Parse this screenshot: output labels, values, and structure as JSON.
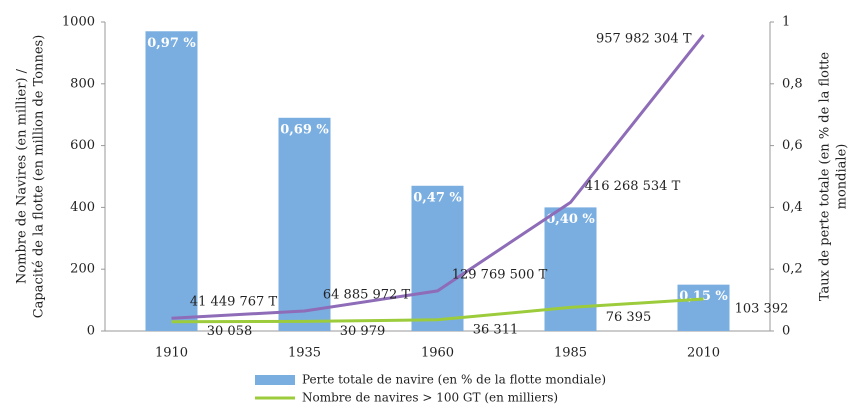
{
  "chart_data": {
    "type": "bar",
    "categories": [
      "1910",
      "1935",
      "1960",
      "1985",
      "2010"
    ],
    "series": [
      {
        "name": "Perte totale de navire (en % de la flotte mondiale)",
        "type": "bar",
        "axis": "y2",
        "color": "#7aaee0",
        "values": [
          0.97,
          0.69,
          0.47,
          0.4,
          0.15
        ],
        "value_labels": [
          "0,97 %",
          "0,69 %",
          "0,47 %",
          "0,40 %",
          "0,15 %"
        ]
      },
      {
        "type": "line",
        "color": "#8e6cb8",
        "values": [
          41.449767,
          64.885972,
          129.7695,
          416.268534,
          957.982304
        ],
        "value_labels": [
          "41 449 767 T",
          "64 885 972 T",
          "129 769 500 T",
          "416 268 534 T",
          "957 982 304 T"
        ]
      },
      {
        "name": "Nombre de navires > 100 GT (en milliers)",
        "type": "line",
        "color": "#9ccc3c",
        "values": [
          30.058,
          30.979,
          36.311,
          76.395,
          103.392
        ],
        "value_labels": [
          "30 058",
          "30 979",
          "36 311",
          "76 395",
          "103 392"
        ]
      }
    ],
    "y_label": [
      "Nombre de Navires (en millier) /",
      "Capacité de la flotte (en million de Tonnes)"
    ],
    "y2_label": [
      "Taux de perte totale (en % de la flotte",
      "mondiale)"
    ],
    "ylim": [
      0,
      1000
    ],
    "yticks": [
      0,
      200,
      400,
      600,
      800,
      1000
    ],
    "y2lim": [
      0,
      1
    ],
    "y2ticks": [
      0,
      {
        "value": 0.2,
        "label": "0,2"
      },
      {
        "value": 0.4,
        "label": "0,4"
      },
      {
        "value": 0.6,
        "label": "0,6"
      },
      {
        "value": 0.8,
        "label": "0,8"
      },
      1
    ],
    "grid": false,
    "legend": "bottom"
  }
}
